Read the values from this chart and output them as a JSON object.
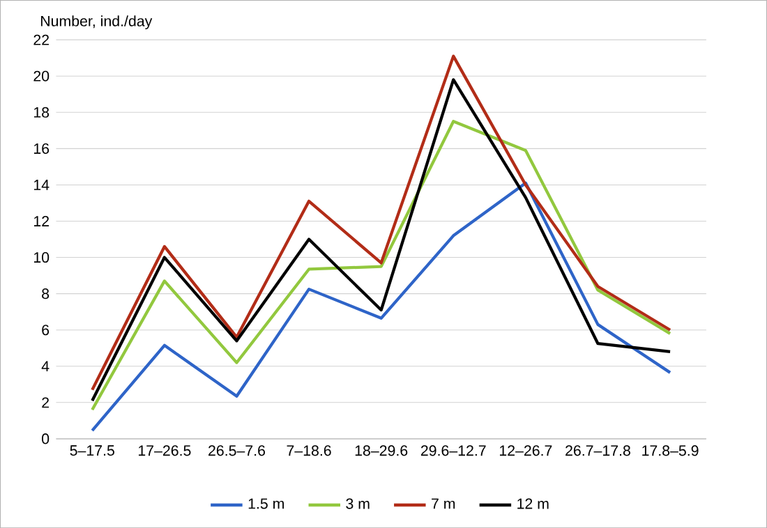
{
  "chart_data": {
    "type": "line",
    "ylabel": "Number, ind./day",
    "categories": [
      "5–17.5",
      "17–26.5",
      "26.5–7.6",
      "7–18.6",
      "18–29.6",
      "29.6–12.7",
      "12–26.7",
      "26.7–17.8",
      "17.8–5.9"
    ],
    "series": [
      {
        "name": "1.5 m",
        "color": "#2e64c8",
        "values": [
          0.45,
          5.15,
          2.35,
          8.25,
          6.65,
          11.2,
          14.1,
          6.3,
          3.65
        ]
      },
      {
        "name": "3 m",
        "color": "#92c83e",
        "values": [
          1.6,
          8.7,
          4.2,
          9.35,
          9.5,
          17.5,
          15.9,
          8.2,
          5.8
        ]
      },
      {
        "name": "7 m",
        "color": "#b22c17",
        "values": [
          2.7,
          10.6,
          5.6,
          13.1,
          9.7,
          21.1,
          14.0,
          8.4,
          6.0
        ]
      },
      {
        "name": "12 m",
        "color": "#000000",
        "values": [
          2.1,
          10.0,
          5.4,
          11.0,
          7.1,
          19.8,
          13.3,
          5.25,
          4.8
        ]
      }
    ],
    "ylim": [
      0,
      22
    ],
    "yticks": [
      0,
      2,
      4,
      6,
      8,
      10,
      12,
      14,
      16,
      18,
      20,
      22
    ],
    "grid": "y",
    "legend": "bottom",
    "marker": "none",
    "line_style": "solid"
  }
}
